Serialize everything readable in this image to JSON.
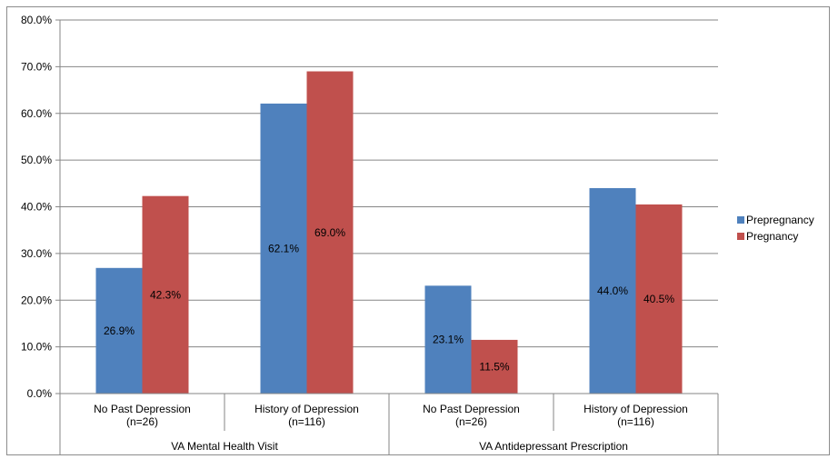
{
  "chart_data": {
    "type": "bar",
    "groups": [
      "VA Mental Health Visit",
      "VA Antidepressant Prescription"
    ],
    "categories": [
      {
        "line1": "No Past Depression",
        "line2": "(n=26)"
      },
      {
        "line1": "History of Depression",
        "line2": "(n=116)"
      },
      {
        "line1": "No Past Depression",
        "line2": "(n=26)"
      },
      {
        "line1": "History of Depression",
        "line2": "(n=116)"
      }
    ],
    "series": [
      {
        "name": "Prepregnancy",
        "color": "#4F81BD",
        "values": [
          26.9,
          62.1,
          23.1,
          44.0
        ],
        "labels": [
          "26.9%",
          "62.1%",
          "23.1%",
          "44.0%"
        ]
      },
      {
        "name": "Pregnancy",
        "color": "#C0504D",
        "values": [
          42.3,
          69.0,
          11.5,
          40.5
        ],
        "labels": [
          "42.3%",
          "69.0%",
          "11.5%",
          "40.5%"
        ]
      }
    ],
    "ylim": [
      0,
      80
    ],
    "yticks": [
      "0.0%",
      "10.0%",
      "20.0%",
      "30.0%",
      "40.0%",
      "50.0%",
      "60.0%",
      "70.0%",
      "80.0%"
    ],
    "grid": true,
    "legend_position": "right"
  }
}
